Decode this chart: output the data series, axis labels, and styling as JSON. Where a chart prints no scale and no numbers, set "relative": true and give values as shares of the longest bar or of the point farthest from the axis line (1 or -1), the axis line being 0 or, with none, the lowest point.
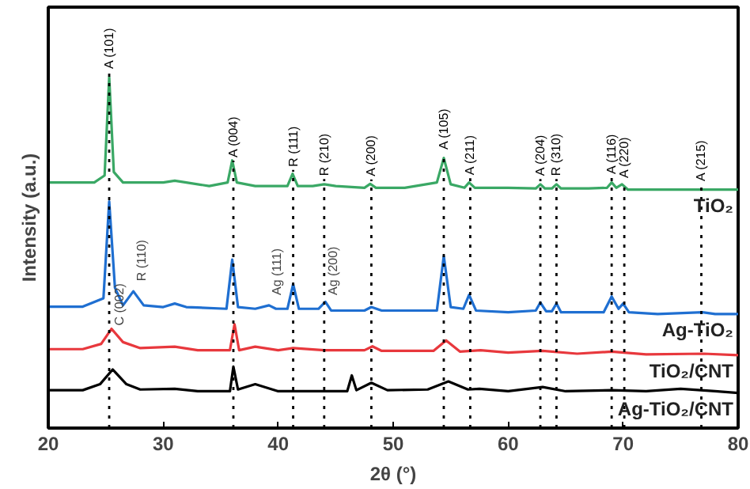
{
  "chart_data": {
    "type": "line",
    "relative": true,
    "xlabel": "2θ (°)",
    "ylabel": "Intensity (a.u.)",
    "xlim": [
      20,
      80
    ],
    "xticks": [
      20,
      30,
      40,
      50,
      60,
      70,
      80
    ],
    "grid": false,
    "series": [
      {
        "name": "TiO₂",
        "color": "#3aa865",
        "x": [
          20,
          22,
          24,
          24.9,
          25.3,
          25.7,
          26.5,
          28,
          30,
          31,
          32,
          34,
          35.6,
          36.0,
          36.4,
          38,
          39.5,
          40.8,
          41.25,
          41.7,
          43,
          44.0,
          45,
          47.5,
          48.0,
          48.5,
          51,
          53.8,
          54.4,
          55,
          56.2,
          56.6,
          57.1,
          60,
          62.4,
          62.8,
          63.2,
          63.8,
          64.2,
          64.6,
          67,
          68.6,
          69.0,
          69.4,
          69.9,
          70.4,
          73,
          76.8,
          78,
          80
        ],
        "values": [
          0.7,
          0.7,
          0.7,
          0.72,
          1.0,
          0.73,
          0.7,
          0.7,
          0.7,
          0.705,
          0.7,
          0.69,
          0.7,
          0.763,
          0.7,
          0.69,
          0.69,
          0.69,
          0.725,
          0.69,
          0.69,
          0.695,
          0.69,
          0.685,
          0.696,
          0.685,
          0.685,
          0.7,
          0.77,
          0.695,
          0.685,
          0.7,
          0.685,
          0.685,
          0.683,
          0.695,
          0.683,
          0.683,
          0.695,
          0.683,
          0.683,
          0.685,
          0.7,
          0.685,
          0.695,
          0.68,
          0.68,
          0.68,
          0.68,
          0.68
        ]
      },
      {
        "name": "Ag-TiO₂",
        "color": "#1f6fd1",
        "x": [
          20,
          23,
          24.8,
          25.3,
          25.8,
          26.5,
          27.4,
          28.3,
          30,
          31,
          32,
          35.5,
          36.0,
          36.5,
          38,
          39.2,
          39.8,
          40.8,
          41.3,
          41.8,
          43.5,
          44.1,
          44.6,
          47.5,
          48.1,
          49,
          53.8,
          54.4,
          55,
          56.1,
          56.6,
          57.2,
          60,
          62.4,
          62.8,
          63.3,
          63.8,
          64.2,
          64.6,
          68.3,
          69.0,
          69.6,
          70.0,
          70.5,
          73,
          76.9,
          78,
          80
        ],
        "values": [
          0.346,
          0.346,
          0.37,
          0.646,
          0.4,
          0.35,
          0.39,
          0.35,
          0.345,
          0.355,
          0.345,
          0.34,
          0.48,
          0.345,
          0.34,
          0.35,
          0.34,
          0.34,
          0.41,
          0.34,
          0.34,
          0.36,
          0.335,
          0.335,
          0.345,
          0.335,
          0.335,
          0.49,
          0.345,
          0.34,
          0.38,
          0.335,
          0.33,
          0.335,
          0.358,
          0.333,
          0.333,
          0.355,
          0.33,
          0.33,
          0.375,
          0.34,
          0.355,
          0.33,
          0.325,
          0.33,
          0.325,
          0.325
        ]
      },
      {
        "name": "TiO₂/CNT",
        "color": "#e8383d",
        "x": [
          20,
          23,
          24.6,
          25.5,
          26.5,
          28,
          31,
          33,
          35.8,
          36.2,
          36.6,
          38,
          40,
          41.3,
          44,
          47.5,
          48.2,
          49,
          53.5,
          54.6,
          55.8,
          57.6,
          60,
          63,
          66,
          69,
          72,
          77,
          80
        ],
        "values": [
          0.225,
          0.225,
          0.24,
          0.283,
          0.245,
          0.228,
          0.232,
          0.222,
          0.222,
          0.296,
          0.222,
          0.232,
          0.222,
          0.228,
          0.222,
          0.222,
          0.233,
          0.22,
          0.22,
          0.25,
          0.218,
          0.222,
          0.215,
          0.22,
          0.212,
          0.218,
          0.21,
          0.212,
          0.208
        ]
      },
      {
        "name": "Ag-TiO₂/CNT",
        "color": "#000000",
        "x": [
          20,
          23,
          24.5,
          25.6,
          26.8,
          28,
          31,
          33,
          35.8,
          36.1,
          36.5,
          38,
          40,
          44,
          46.0,
          46.4,
          46.8,
          48.1,
          49.5,
          53,
          54.8,
          56.5,
          57.5,
          60,
          63,
          65,
          69,
          72,
          75,
          78,
          80
        ],
        "values": [
          0.108,
          0.108,
          0.125,
          0.167,
          0.125,
          0.11,
          0.112,
          0.105,
          0.105,
          0.175,
          0.11,
          0.125,
          0.105,
          0.105,
          0.105,
          0.15,
          0.108,
          0.129,
          0.108,
          0.11,
          0.133,
          0.11,
          0.112,
          0.105,
          0.117,
          0.105,
          0.108,
          0.105,
          0.112,
          0.105,
          0.1
        ]
      }
    ],
    "ref_lines": [
      {
        "axis": "x",
        "value": 25.3,
        "label": "A (101)",
        "line_style": "dotted"
      },
      {
        "axis": "x",
        "value": 36.1,
        "label": "A (004)",
        "line_style": "dotted"
      },
      {
        "axis": "x",
        "value": 41.3,
        "label": "R (111)",
        "line_style": "dotted"
      },
      {
        "axis": "x",
        "value": 44.0,
        "label": "R (210)",
        "line_style": "dotted"
      },
      {
        "axis": "x",
        "value": 48.1,
        "label": "A (200)",
        "line_style": "dotted"
      },
      {
        "axis": "x",
        "value": 54.4,
        "label": "A (105)",
        "line_style": "dotted"
      },
      {
        "axis": "x",
        "value": 56.7,
        "label": "A (211)",
        "line_style": "dotted"
      },
      {
        "axis": "x",
        "value": 62.8,
        "label": "A (204)",
        "line_style": "dotted"
      },
      {
        "axis": "x",
        "value": 64.2,
        "label": "R (310)",
        "line_style": "dotted"
      },
      {
        "axis": "x",
        "value": 69.0,
        "label": "A (116)",
        "line_style": "dotted"
      },
      {
        "axis": "x",
        "value": 70.1,
        "label": "A (220)",
        "line_style": "dotted"
      },
      {
        "axis": "x",
        "value": 76.8,
        "label": "A (215)",
        "line_style": "dotted"
      }
    ],
    "annotations": [
      {
        "text": "R (110)",
        "x": 27.4,
        "y": 0.41
      },
      {
        "text": "C (002)",
        "x": 25.5,
        "y": 0.283
      },
      {
        "text": "Ag (111)",
        "x": 39.2,
        "y": 0.37
      },
      {
        "text": "Ag (200)",
        "x": 44.1,
        "y": 0.37
      }
    ]
  }
}
